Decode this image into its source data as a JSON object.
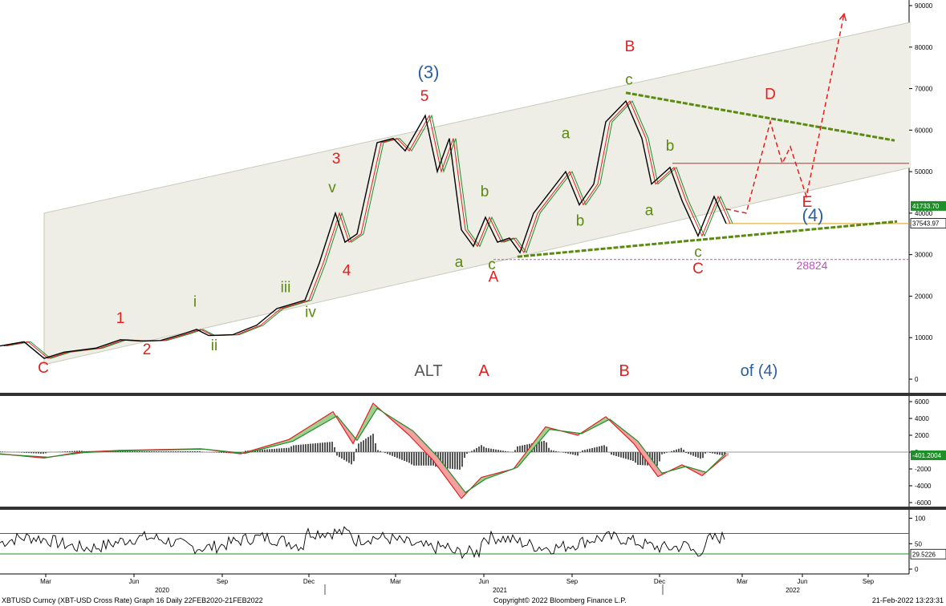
{
  "chart_data": [
    {
      "type": "line",
      "series_name": "XBTUSD Curncy",
      "x_axis": {
        "months": [
          "Mar",
          "Jun",
          "Sep",
          "Dec",
          "Mar",
          "Jun",
          "Sep",
          "Dec",
          "Mar",
          "Jun",
          "Sep"
        ],
        "years": [
          "2020",
          "2021",
          "2022"
        ]
      },
      "y_axis": {
        "ticks": [
          "90000",
          "80000",
          "70000",
          "60000",
          "50000",
          "40000",
          "30000",
          "20000",
          "10000",
          "0"
        ],
        "ylim": [
          -2000,
          91500
        ]
      },
      "price_path": [
        {
          "t": 0,
          "y": 8000
        },
        {
          "t": 30,
          "y": 9000
        },
        {
          "t": 55,
          "y": 5000
        },
        {
          "t": 80,
          "y": 6500
        },
        {
          "t": 120,
          "y": 7500
        },
        {
          "t": 150,
          "y": 9500
        },
        {
          "t": 175,
          "y": 9200
        },
        {
          "t": 200,
          "y": 9300
        },
        {
          "t": 230,
          "y": 11000
        },
        {
          "t": 245,
          "y": 12000
        },
        {
          "t": 260,
          "y": 10500
        },
        {
          "t": 290,
          "y": 10700
        },
        {
          "t": 320,
          "y": 13000
        },
        {
          "t": 345,
          "y": 17000
        },
        {
          "t": 380,
          "y": 19000
        },
        {
          "t": 398,
          "y": 28000
        },
        {
          "t": 418,
          "y": 40000
        },
        {
          "t": 430,
          "y": 33000
        },
        {
          "t": 445,
          "y": 35000
        },
        {
          "t": 470,
          "y": 57000
        },
        {
          "t": 490,
          "y": 58000
        },
        {
          "t": 505,
          "y": 55000
        },
        {
          "t": 530,
          "y": 63500
        },
        {
          "t": 545,
          "y": 50000
        },
        {
          "t": 560,
          "y": 58000
        },
        {
          "t": 575,
          "y": 36000
        },
        {
          "t": 590,
          "y": 32000
        },
        {
          "t": 605,
          "y": 39000
        },
        {
          "t": 620,
          "y": 33000
        },
        {
          "t": 635,
          "y": 34000
        },
        {
          "t": 648,
          "y": 30500
        },
        {
          "t": 665,
          "y": 40000
        },
        {
          "t": 705,
          "y": 50000
        },
        {
          "t": 722,
          "y": 42000
        },
        {
          "t": 740,
          "y": 47000
        },
        {
          "t": 755,
          "y": 62000
        },
        {
          "t": 780,
          "y": 67000
        },
        {
          "t": 800,
          "y": 58000
        },
        {
          "t": 812,
          "y": 47000
        },
        {
          "t": 835,
          "y": 51000
        },
        {
          "t": 850,
          "y": 43000
        },
        {
          "t": 870,
          "y": 34500
        },
        {
          "t": 890,
          "y": 44000
        },
        {
          "t": 905,
          "y": 37500
        }
      ],
      "last_price": "37543.97",
      "price_labels": [
        {
          "text": "41733.70",
          "color": "#1f8f2a"
        },
        {
          "text": "37543.97",
          "color": "#000000"
        }
      ],
      "levels": [
        {
          "name": "horizontal-resistance",
          "value": 52000,
          "color": "#e02020"
        },
        {
          "name": "horizontal-support",
          "value": 37500,
          "color": "#d4a020"
        },
        {
          "name": "support-28824",
          "value": 28824,
          "color": "#c050c0",
          "label": "28824"
        }
      ],
      "projection": {
        "color": "#e02020",
        "path": [
          {
            "t": 905,
            "y": 41000
          },
          {
            "t": 930,
            "y": 40000
          },
          {
            "t": 960,
            "y": 62000
          },
          {
            "t": 975,
            "y": 52000
          },
          {
            "t": 985,
            "y": 56000
          },
          {
            "t": 1005,
            "y": 44000
          },
          {
            "t": 1052,
            "y": 88000
          }
        ]
      },
      "wave_labels": [
        {
          "text": "C",
          "color": "#e02020",
          "t": 54,
          "y": 1500
        },
        {
          "text": "1",
          "color": "#e02020",
          "t": 150,
          "y": 13500
        },
        {
          "text": "2",
          "color": "#e02020",
          "t": 183,
          "y": 6000
        },
        {
          "text": "i",
          "color": "#5a8a10",
          "t": 243,
          "y": 17500
        },
        {
          "text": "ii",
          "color": "#5a8a10",
          "t": 267,
          "y": 7000
        },
        {
          "text": "iii",
          "color": "#5a8a10",
          "t": 356,
          "y": 21000
        },
        {
          "text": "iv",
          "color": "#5a8a10",
          "t": 387,
          "y": 15000
        },
        {
          "text": "v",
          "color": "#5a8a10",
          "t": 414,
          "y": 45000
        },
        {
          "text": "3",
          "color": "#e02020",
          "t": 419,
          "y": 52000
        },
        {
          "text": "4",
          "color": "#e02020",
          "t": 432,
          "y": 25000
        },
        {
          "text": "(3)",
          "color": "#2a5f9e",
          "t": 534,
          "y": 72500
        },
        {
          "text": "5",
          "color": "#e02020",
          "t": 529,
          "y": 67000
        },
        {
          "text": "a",
          "color": "#5a8a10",
          "t": 572,
          "y": 27000
        },
        {
          "text": "b",
          "color": "#5a8a10",
          "t": 604,
          "y": 44000
        },
        {
          "text": "c",
          "color": "#5a8a10",
          "t": 613,
          "y": 26500
        },
        {
          "text": "A",
          "color": "#e02020",
          "t": 615,
          "y": 23500
        },
        {
          "text": "a",
          "color": "#5a8a10",
          "t": 705,
          "y": 58000
        },
        {
          "text": "b",
          "color": "#5a8a10",
          "t": 723,
          "y": 37000
        },
        {
          "text": "c",
          "color": "#5a8a10",
          "t": 784,
          "y": 71000
        },
        {
          "text": "B",
          "color": "#e02020",
          "t": 785,
          "y": 79000
        },
        {
          "text": "b",
          "color": "#5a8a10",
          "t": 835,
          "y": 55000
        },
        {
          "text": "a",
          "color": "#5a8a10",
          "t": 809,
          "y": 39500
        },
        {
          "text": "c",
          "color": "#5a8a10",
          "t": 870,
          "y": 29500
        },
        {
          "text": "C",
          "color": "#e02020",
          "t": 870,
          "y": 25500
        },
        {
          "text": "D",
          "color": "#e02020",
          "t": 960,
          "y": 67500
        },
        {
          "text": "E",
          "color": "#e02020",
          "t": 1006,
          "y": 41500
        },
        {
          "text": "(4)",
          "color": "#2a5f9e",
          "t": 1013,
          "y": 38000
        },
        {
          "text": "28824",
          "color": "#c050c0",
          "t": 1012,
          "y": 26500
        }
      ],
      "alt_labels": [
        {
          "text": "ALT",
          "color": "#555555",
          "t": 534
        },
        {
          "text": "A",
          "color": "#e02020",
          "t": 603
        },
        {
          "text": "B",
          "color": "#e02020",
          "t": 778
        },
        {
          "text": "of (4)",
          "color": "#2a5f9e",
          "t": 946
        }
      ],
      "channel": {
        "upper": [
          [
            55,
            40000
          ],
          [
            1135,
            86000
          ]
        ],
        "lower": [
          [
            55,
            3500
          ],
          [
            1135,
            51000
          ]
        ]
      },
      "triangle": {
        "color": "#5a8a10",
        "upper": [
          [
            780,
            69000
          ],
          [
            1115,
            57500
          ]
        ],
        "lower": [
          [
            645,
            29500
          ],
          [
            1118,
            38000
          ]
        ]
      },
      "grid": false
    },
    {
      "type": "line",
      "name": "MACD",
      "y_axis": {
        "ticks": [
          "6000",
          "4000",
          "2000",
          "0",
          "-2000",
          "-4000",
          "-6000"
        ],
        "ylim": [
          -6800,
          6200
        ]
      },
      "last_value": "-401.2004",
      "series": [
        {
          "name": "fast",
          "color": "#e02020",
          "values": [
            {
              "t": 0,
              "y": -200
            },
            {
              "t": 55,
              "y": -700
            },
            {
              "t": 100,
              "y": 0
            },
            {
              "t": 150,
              "y": 200
            },
            {
              "t": 250,
              "y": 400
            },
            {
              "t": 300,
              "y": -200
            },
            {
              "t": 360,
              "y": 1500
            },
            {
              "t": 415,
              "y": 4800
            },
            {
              "t": 440,
              "y": 1000
            },
            {
              "t": 465,
              "y": 5800
            },
            {
              "t": 510,
              "y": 2000
            },
            {
              "t": 540,
              "y": -1000
            },
            {
              "t": 575,
              "y": -5500
            },
            {
              "t": 600,
              "y": -3000
            },
            {
              "t": 640,
              "y": -2000
            },
            {
              "t": 680,
              "y": 3000
            },
            {
              "t": 720,
              "y": 2000
            },
            {
              "t": 755,
              "y": 4200
            },
            {
              "t": 790,
              "y": 1000
            },
            {
              "t": 820,
              "y": -2900
            },
            {
              "t": 850,
              "y": -1500
            },
            {
              "t": 875,
              "y": -2800
            },
            {
              "t": 905,
              "y": -400
            }
          ]
        },
        {
          "name": "signal",
          "color": "#1f8f2a",
          "values": [
            {
              "t": 0,
              "y": -250
            },
            {
              "t": 60,
              "y": -600
            },
            {
              "t": 105,
              "y": -50
            },
            {
              "t": 155,
              "y": 150
            },
            {
              "t": 255,
              "y": 350
            },
            {
              "t": 305,
              "y": -150
            },
            {
              "t": 365,
              "y": 1300
            },
            {
              "t": 420,
              "y": 4300
            },
            {
              "t": 445,
              "y": 1400
            },
            {
              "t": 470,
              "y": 5200
            },
            {
              "t": 515,
              "y": 2500
            },
            {
              "t": 545,
              "y": -500
            },
            {
              "t": 580,
              "y": -4800
            },
            {
              "t": 605,
              "y": -3200
            },
            {
              "t": 645,
              "y": -1800
            },
            {
              "t": 685,
              "y": 2700
            },
            {
              "t": 725,
              "y": 2200
            },
            {
              "t": 760,
              "y": 3900
            },
            {
              "t": 795,
              "y": 1300
            },
            {
              "t": 825,
              "y": -2500
            },
            {
              "t": 855,
              "y": -1700
            },
            {
              "t": 880,
              "y": -2400
            },
            {
              "t": 905,
              "y": -100
            }
          ]
        }
      ]
    },
    {
      "type": "line",
      "name": "RSI",
      "y_axis": {
        "ticks": [
          "100",
          "50",
          "0"
        ],
        "ylim": [
          -8,
          108
        ]
      },
      "levels": [
        {
          "value": 70,
          "color": "#e02020"
        },
        {
          "value": 30,
          "color": "#1f8f2a"
        }
      ],
      "last_value": "29.5226"
    }
  ],
  "footer": {
    "left": "XBTUSD Curncy (XBT-USD Cross Rate) Graph 16  Daily 22FEB2020-21FEB2022",
    "center": "Copyright© 2022 Bloomberg Finance L.P.",
    "right": "21-Feb-2022 13:23:31"
  }
}
